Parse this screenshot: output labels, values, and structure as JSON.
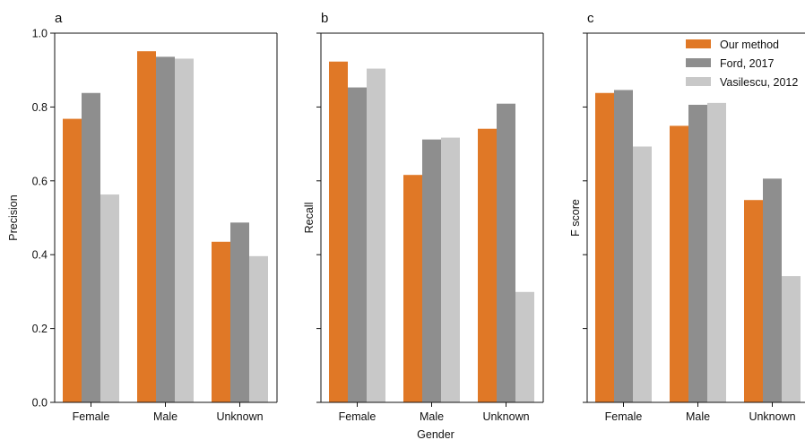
{
  "chart_data": {
    "type": "bar",
    "xlabel": "Gender",
    "categories": [
      "Female",
      "Male",
      "Unknown"
    ],
    "legend": {
      "placement": "top-right",
      "entries": [
        "Our method",
        "Ford, 2017",
        "Vasilescu, 2012"
      ]
    },
    "colors": {
      "Our method": "#e07826",
      "Ford, 2017": "#8e8e8e",
      "Vasilescu, 2012": "#c8c8c8"
    },
    "yticks": [
      "0.0",
      "0.2",
      "0.4",
      "0.6",
      "0.8",
      "1.0"
    ],
    "ylim": [
      0,
      1.0
    ],
    "grid": false,
    "panels": [
      {
        "letter": "a",
        "ylabel": "Precision",
        "series": [
          {
            "name": "Our method",
            "values": [
              0.768,
              0.951,
              0.435
            ]
          },
          {
            "name": "Ford, 2017",
            "values": [
              0.838,
              0.936,
              0.487
            ]
          },
          {
            "name": "Vasilescu, 2012",
            "values": [
              0.563,
              0.931,
              0.396
            ]
          }
        ]
      },
      {
        "letter": "b",
        "ylabel": "Recall",
        "series": [
          {
            "name": "Our method",
            "values": [
              0.923,
              0.616,
              0.741
            ]
          },
          {
            "name": "Ford, 2017",
            "values": [
              0.853,
              0.712,
              0.809
            ]
          },
          {
            "name": "Vasilescu, 2012",
            "values": [
              0.904,
              0.717,
              0.299
            ]
          }
        ]
      },
      {
        "letter": "c",
        "ylabel": "F score",
        "series": [
          {
            "name": "Our method",
            "values": [
              0.838,
              0.749,
              0.548
            ]
          },
          {
            "name": "Ford, 2017",
            "values": [
              0.846,
              0.806,
              0.606
            ]
          },
          {
            "name": "Vasilescu, 2012",
            "values": [
              0.693,
              0.811,
              0.342
            ]
          }
        ]
      }
    ]
  }
}
